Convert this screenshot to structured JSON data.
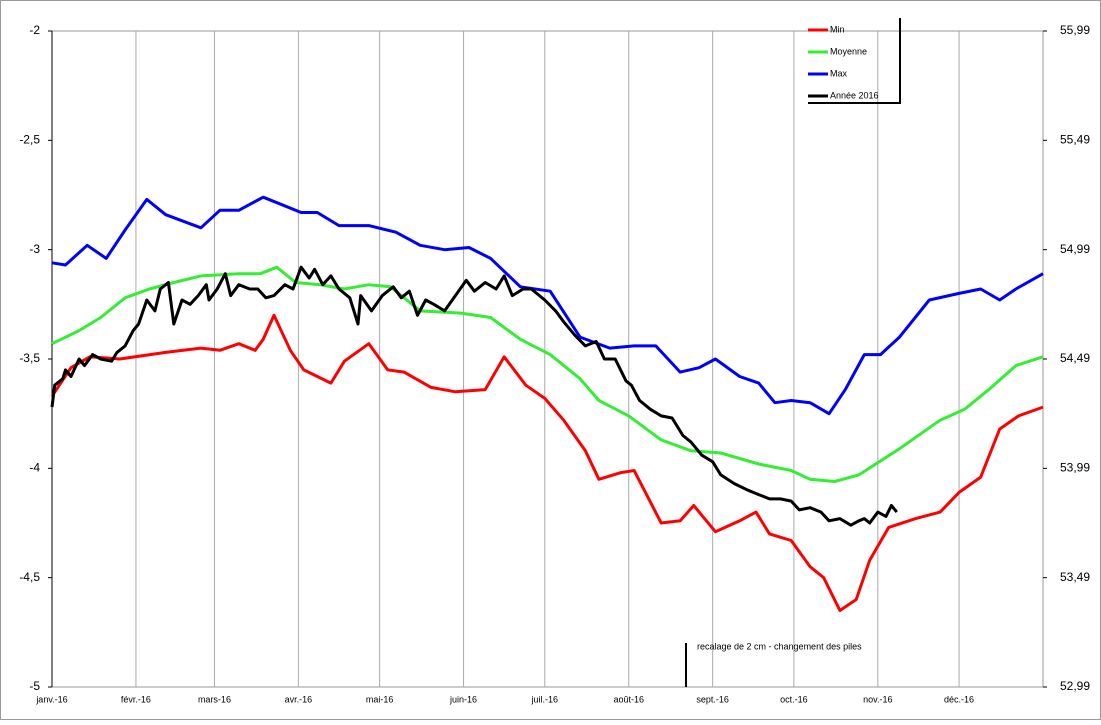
{
  "chart_data": {
    "type": "line",
    "xlim": [
      0,
      366
    ],
    "xticks": [
      {
        "value": 0,
        "label": "janv.-16"
      },
      {
        "value": 31,
        "label": "févr.-16"
      },
      {
        "value": 60,
        "label": "mars-16"
      },
      {
        "value": 91,
        "label": "avr.-16"
      },
      {
        "value": 121,
        "label": "mai-16"
      },
      {
        "value": 152,
        "label": "juin-16"
      },
      {
        "value": 182,
        "label": "juil.-16"
      },
      {
        "value": 213,
        "label": "août-16"
      },
      {
        "value": 244,
        "label": "sept.-16"
      },
      {
        "value": 274,
        "label": "oct.-16"
      },
      {
        "value": 305,
        "label": "nov.-16"
      },
      {
        "value": 335,
        "label": "déc.-16"
      }
    ],
    "ylim": [
      -5,
      -2
    ],
    "yticks": [
      -5,
      {
        "value": -4.5,
        "label": "-4,5"
      },
      -4,
      {
        "value": -3.5,
        "label": "-3,5"
      },
      -3,
      {
        "value": -2.5,
        "label": "-2,5"
      },
      -2
    ],
    "y2lim": [
      52.99,
      55.99
    ],
    "y2ticks": [
      {
        "value": 52.99,
        "label": "52,99"
      },
      {
        "value": 53.49,
        "label": "53,49"
      },
      {
        "value": 53.99,
        "label": "53,99"
      },
      {
        "value": 54.49,
        "label": "54,49"
      },
      {
        "value": 54.99,
        "label": "54,99"
      },
      {
        "value": 55.49,
        "label": "55,49"
      },
      {
        "value": 55.99,
        "label": "55,99"
      }
    ],
    "grid": "x",
    "legend": "top-right",
    "annotation": "recalage de 2 cm - changement des piles",
    "series": [
      {
        "name": "Min",
        "color": "#ff0000",
        "x": [
          0,
          7,
          14,
          25,
          42,
          55,
          62,
          69,
          75,
          78,
          82,
          88,
          93,
          103,
          108,
          117,
          124,
          130,
          140,
          149,
          160,
          167,
          175,
          182,
          189,
          197,
          202,
          210,
          215,
          225,
          232,
          237,
          245,
          254,
          260,
          265,
          273,
          280,
          285,
          291,
          297,
          302,
          309,
          319,
          328,
          335,
          343,
          350,
          357,
          366
        ],
        "values": [
          -3.67,
          -3.54,
          -3.49,
          -3.5,
          -3.47,
          -3.45,
          -3.46,
          -3.43,
          -3.46,
          -3.41,
          -3.3,
          -3.46,
          -3.55,
          -3.61,
          -3.51,
          -3.43,
          -3.55,
          -3.56,
          -3.63,
          -3.65,
          -3.64,
          -3.49,
          -3.62,
          -3.68,
          -3.78,
          -3.92,
          -4.05,
          -4.02,
          -4.01,
          -4.25,
          -4.24,
          -4.17,
          -4.29,
          -4.24,
          -4.2,
          -4.3,
          -4.33,
          -4.45,
          -4.5,
          -4.65,
          -4.6,
          -4.42,
          -4.27,
          -4.23,
          -4.2,
          -4.11,
          -4.04,
          -3.82,
          -3.76,
          -3.72
        ]
      },
      {
        "name": "Moyenne",
        "color": "#33ee33",
        "x": [
          0,
          10,
          18,
          27,
          36,
          45,
          55,
          69,
          77,
          83,
          90,
          99,
          108,
          117,
          125,
          136,
          151,
          162,
          173,
          184,
          195,
          202,
          213,
          225,
          236,
          247,
          261,
          273,
          280,
          289,
          298,
          313,
          328,
          337,
          346,
          356,
          366
        ],
        "values": [
          -3.43,
          -3.37,
          -3.31,
          -3.22,
          -3.18,
          -3.15,
          -3.12,
          -3.11,
          -3.11,
          -3.08,
          -3.15,
          -3.16,
          -3.18,
          -3.16,
          -3.17,
          -3.28,
          -3.29,
          -3.31,
          -3.41,
          -3.48,
          -3.59,
          -3.69,
          -3.76,
          -3.87,
          -3.92,
          -3.93,
          -3.98,
          -4.01,
          -4.05,
          -4.06,
          -4.03,
          -3.91,
          -3.78,
          -3.73,
          -3.64,
          -3.53,
          -3.49
        ]
      },
      {
        "name": "Max",
        "color": "#0000ff",
        "x": [
          0,
          5,
          13,
          20,
          27,
          35,
          42,
          55,
          62,
          69,
          78,
          84,
          92,
          98,
          106,
          117,
          127,
          136,
          145,
          154,
          162,
          173,
          184,
          195,
          206,
          215,
          223,
          232,
          239,
          245,
          254,
          261,
          267,
          273,
          280,
          287,
          293,
          300,
          306,
          313,
          324,
          335,
          343,
          350,
          356,
          366
        ],
        "values": [
          -3.06,
          -3.07,
          -2.98,
          -3.04,
          -2.91,
          -2.77,
          -2.84,
          -2.9,
          -2.82,
          -2.82,
          -2.76,
          -2.79,
          -2.83,
          -2.83,
          -2.89,
          -2.89,
          -2.92,
          -2.98,
          -3,
          -2.99,
          -3.04,
          -3.17,
          -3.19,
          -3.4,
          -3.45,
          -3.44,
          -3.44,
          -3.56,
          -3.54,
          -3.5,
          -3.58,
          -3.61,
          -3.7,
          -3.69,
          -3.7,
          -3.75,
          -3.64,
          -3.48,
          -3.48,
          -3.4,
          -3.23,
          -3.2,
          -3.18,
          -3.23,
          -3.18,
          -3.11
        ]
      },
      {
        "name": "Année 2016",
        "color": "#000000",
        "x": [
          0,
          1,
          4,
          5,
          7,
          10,
          12,
          15,
          18,
          22,
          24,
          27,
          30,
          32,
          35,
          38,
          40,
          43,
          45,
          48,
          51,
          54,
          57,
          58,
          61,
          64,
          66,
          69,
          73,
          76,
          79,
          82,
          86,
          89,
          92,
          95,
          97,
          100,
          103,
          106,
          110,
          113,
          114,
          118,
          122,
          126,
          129,
          132,
          135,
          138,
          141,
          145,
          149,
          153,
          156,
          160,
          164,
          167,
          170,
          174,
          177,
          182,
          186,
          189,
          193,
          197,
          201,
          204,
          208,
          212,
          214,
          217,
          221,
          225,
          229,
          233,
          236,
          240,
          244,
          247,
          252,
          257,
          261,
          265,
          269,
          273,
          276,
          280,
          284,
          287,
          291,
          295,
          298,
          300,
          302,
          305,
          308,
          310,
          312
        ],
        "values": [
          -3.72,
          -3.62,
          -3.59,
          -3.55,
          -3.58,
          -3.5,
          -3.53,
          -3.48,
          -3.5,
          -3.51,
          -3.47,
          -3.44,
          -3.37,
          -3.34,
          -3.23,
          -3.28,
          -3.18,
          -3.15,
          -3.34,
          -3.23,
          -3.25,
          -3.21,
          -3.16,
          -3.23,
          -3.18,
          -3.11,
          -3.21,
          -3.16,
          -3.18,
          -3.18,
          -3.22,
          -3.21,
          -3.16,
          -3.18,
          -3.08,
          -3.13,
          -3.09,
          -3.16,
          -3.12,
          -3.18,
          -3.22,
          -3.34,
          -3.21,
          -3.28,
          -3.21,
          -3.17,
          -3.22,
          -3.19,
          -3.3,
          -3.23,
          -3.25,
          -3.28,
          -3.21,
          -3.14,
          -3.19,
          -3.15,
          -3.18,
          -3.12,
          -3.21,
          -3.18,
          -3.18,
          -3.23,
          -3.28,
          -3.33,
          -3.39,
          -3.44,
          -3.42,
          -3.5,
          -3.5,
          -3.6,
          -3.62,
          -3.69,
          -3.73,
          -3.76,
          -3.77,
          -3.85,
          -3.88,
          -3.94,
          -3.97,
          -4.03,
          -4.07,
          -4.1,
          -4.12,
          -4.14,
          -4.14,
          -4.15,
          -4.19,
          -4.18,
          -4.2,
          -4.24,
          -4.23,
          -4.26,
          -4.24,
          -4.23,
          -4.25,
          -4.2,
          -4.22,
          -4.17,
          -4.2
        ]
      }
    ]
  }
}
